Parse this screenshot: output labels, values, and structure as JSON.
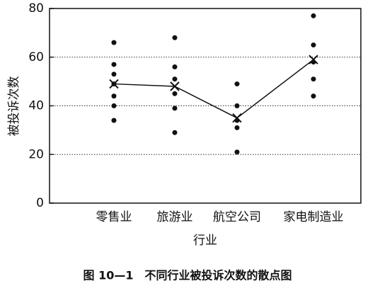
{
  "chart_data": {
    "type": "strip",
    "caption": "图 10—1　不同行业被投诉次数的散点图",
    "xlabel": "行业",
    "ylabel": "被投诉次数",
    "categories": [
      "零售业",
      "旅游业",
      "航空公司",
      "家电制造业"
    ],
    "groups": [
      [
        57,
        66,
        49,
        40,
        34,
        53,
        44
      ],
      [
        68,
        39,
        29,
        45,
        56,
        51
      ],
      [
        31,
        49,
        21,
        40,
        34
      ],
      [
        44,
        51,
        65,
        77,
        58
      ]
    ],
    "means": [
      49,
      48,
      35,
      59
    ],
    "color": "#111111",
    "ylim": [
      0,
      80
    ],
    "yticks": [
      0,
      20,
      40,
      60,
      80
    ],
    "grid": true
  }
}
